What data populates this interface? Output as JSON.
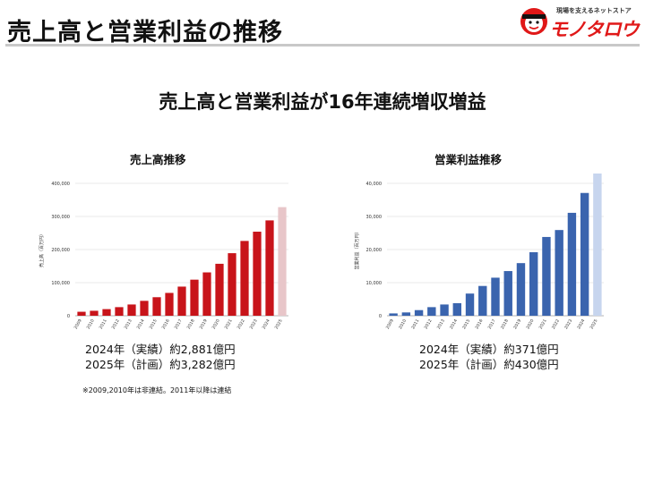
{
  "page": {
    "title": "売上高と営業利益の推移",
    "headline": "売上高と営業利益が16年連続増収増益",
    "footnote": "※2009,2010年は非連結。2011年以降は連結"
  },
  "logo": {
    "tagline": "現場を支えるネットストア",
    "wordmark": "モノタロウ",
    "accent": "#e01818"
  },
  "charts": {
    "sales": {
      "title": "売上高推移",
      "note_line1": "2024年（実績）約2,881億円",
      "note_line2": "2025年（計画）約3,282億円"
    },
    "profit": {
      "title": "営業利益推移",
      "note_line1": "2024年（実績）約371億円",
      "note_line2": "2025年（計画）約430億円"
    }
  },
  "chart_data": [
    {
      "type": "bar",
      "title": "売上高推移",
      "xlabel": "",
      "ylabel": "売上高（百万円）",
      "ylim": [
        0,
        400000
      ],
      "yticks": [
        0,
        100000,
        200000,
        300000,
        400000
      ],
      "ytick_labels": [
        "0",
        "100,000",
        "200,000",
        "300,000",
        "400,000"
      ],
      "categories": [
        "2009",
        "2010",
        "2011",
        "2012",
        "2013",
        "2014",
        "2015",
        "2016",
        "2017",
        "2018",
        "2019",
        "2020",
        "2021",
        "2022",
        "2023",
        "2024",
        "2025"
      ],
      "values": [
        12000,
        15000,
        20000,
        26000,
        34000,
        45000,
        56000,
        69000,
        88000,
        109000,
        131000,
        157000,
        189000,
        226000,
        254000,
        288100,
        328200
      ],
      "color": "#c8141a",
      "plan_color": "#e8c6c9",
      "plan_categories": [
        "2025"
      ],
      "grid": true
    },
    {
      "type": "bar",
      "title": "営業利益推移",
      "xlabel": "",
      "ylabel": "営業利益（百万円）",
      "ylim": [
        0,
        40000
      ],
      "yticks": [
        0,
        10000,
        20000,
        30000,
        40000
      ],
      "ytick_labels": [
        "0",
        "10,000",
        "20,000",
        "30,000",
        "40,000"
      ],
      "categories": [
        "2009",
        "2010",
        "2011",
        "2012",
        "2013",
        "2014",
        "2015",
        "2016",
        "2017",
        "2018",
        "2019",
        "2020",
        "2021",
        "2022",
        "2023",
        "2024",
        "2025"
      ],
      "values": [
        700,
        1000,
        1700,
        2600,
        3400,
        3800,
        6700,
        9000,
        11500,
        13500,
        15900,
        19200,
        23800,
        25900,
        31100,
        37100,
        43000
      ],
      "color": "#3a64ae",
      "plan_color": "#c7d5ee",
      "plan_categories": [
        "2025"
      ],
      "grid": true
    }
  ]
}
